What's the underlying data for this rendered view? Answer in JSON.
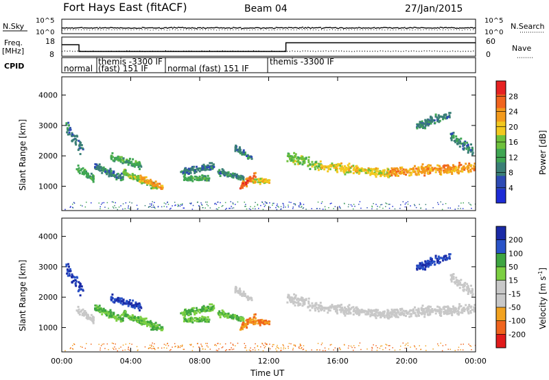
{
  "header": {
    "radar": "Fort Hays East (fitACF)",
    "beam": "Beam 04",
    "date": "27/Jan/2015"
  },
  "left_labels": {
    "nsky": "N.Sky",
    "freq": "Freq.",
    "freq_unit": "[MHz]",
    "cpid": "CPID"
  },
  "right_labels": {
    "nsearch": "N.Search",
    "nave": "Nave"
  },
  "colors": {
    "power": [
      "#1d2bd6",
      "#2d4ab4",
      "#3a7f76",
      "#3fa653",
      "#6ec13c",
      "#f2c91f",
      "#f39a1c",
      "#f1641e",
      "#e62222"
    ],
    "velocity": [
      "#e11b1b",
      "#f0641d",
      "#f2a21f",
      "#c8c8c8",
      "#c8c8c8",
      "#7ccf42",
      "#3ea541",
      "#2a54c8",
      "#1a2aa6"
    ]
  },
  "chart_data": [
    {
      "type": "line",
      "name": "noise",
      "left_axis": {
        "ticks": [
          "10^5",
          "10^0"
        ]
      },
      "right_axis": {
        "ticks": [
          "10^5",
          "10^0"
        ]
      }
    },
    {
      "type": "line",
      "name": "frequency",
      "left_axis": {
        "ylim": [
          8,
          18
        ],
        "ticks": [
          "18",
          "8"
        ]
      },
      "right_axis": {
        "ylim": [
          0,
          60
        ],
        "ticks": [
          "60",
          "0"
        ]
      },
      "freq_steps": [
        {
          "x": 0,
          "y": 14
        },
        {
          "x": 1.0,
          "y": 14
        },
        {
          "x": 1.0,
          "y": 10.5
        },
        {
          "x": 13.0,
          "y": 10.5
        },
        {
          "x": 13.0,
          "y": 15
        },
        {
          "x": 24,
          "y": 15
        }
      ]
    },
    {
      "type": "table",
      "name": "cpid",
      "segments": [
        {
          "start": 0,
          "label": "normal"
        },
        {
          "start": 2.0,
          "label": "themis -3300 IF"
        },
        {
          "start": 2.0,
          "label": "(fast) 151 IF"
        },
        {
          "start": 6.0,
          "label": "normal (fast) 151 IF"
        },
        {
          "start": 12.0,
          "label": "themis -3300 IF"
        }
      ]
    },
    {
      "type": "heatmap",
      "name": "power",
      "xlabel": "",
      "ylabel": "Slant Range [km]",
      "xlim": [
        0,
        24
      ],
      "ylim": [
        200,
        4600
      ],
      "yticks": [
        1000,
        2000,
        3000,
        4000
      ],
      "colorbar": {
        "label": "Power [dB]",
        "ticks": [
          "28",
          "24",
          "20",
          "16",
          "12",
          "8",
          "4"
        ]
      }
    },
    {
      "type": "heatmap",
      "name": "velocity",
      "xlabel": "Time UT",
      "ylabel": "Slant Range [km]",
      "xlim": [
        0,
        24
      ],
      "ylim": [
        200,
        4600
      ],
      "xticks": [
        "00:00",
        "04:00",
        "08:00",
        "12:00",
        "16:00",
        "20:00",
        "00:00"
      ],
      "yticks": [
        1000,
        2000,
        3000,
        4000
      ],
      "colorbar": {
        "label": "Velocity [m s",
        "label_sup": "-1",
        "label_end": "]",
        "ticks": [
          "200",
          "100",
          "50",
          "15",
          "-15",
          "-50",
          "-100",
          "-200"
        ]
      }
    }
  ]
}
